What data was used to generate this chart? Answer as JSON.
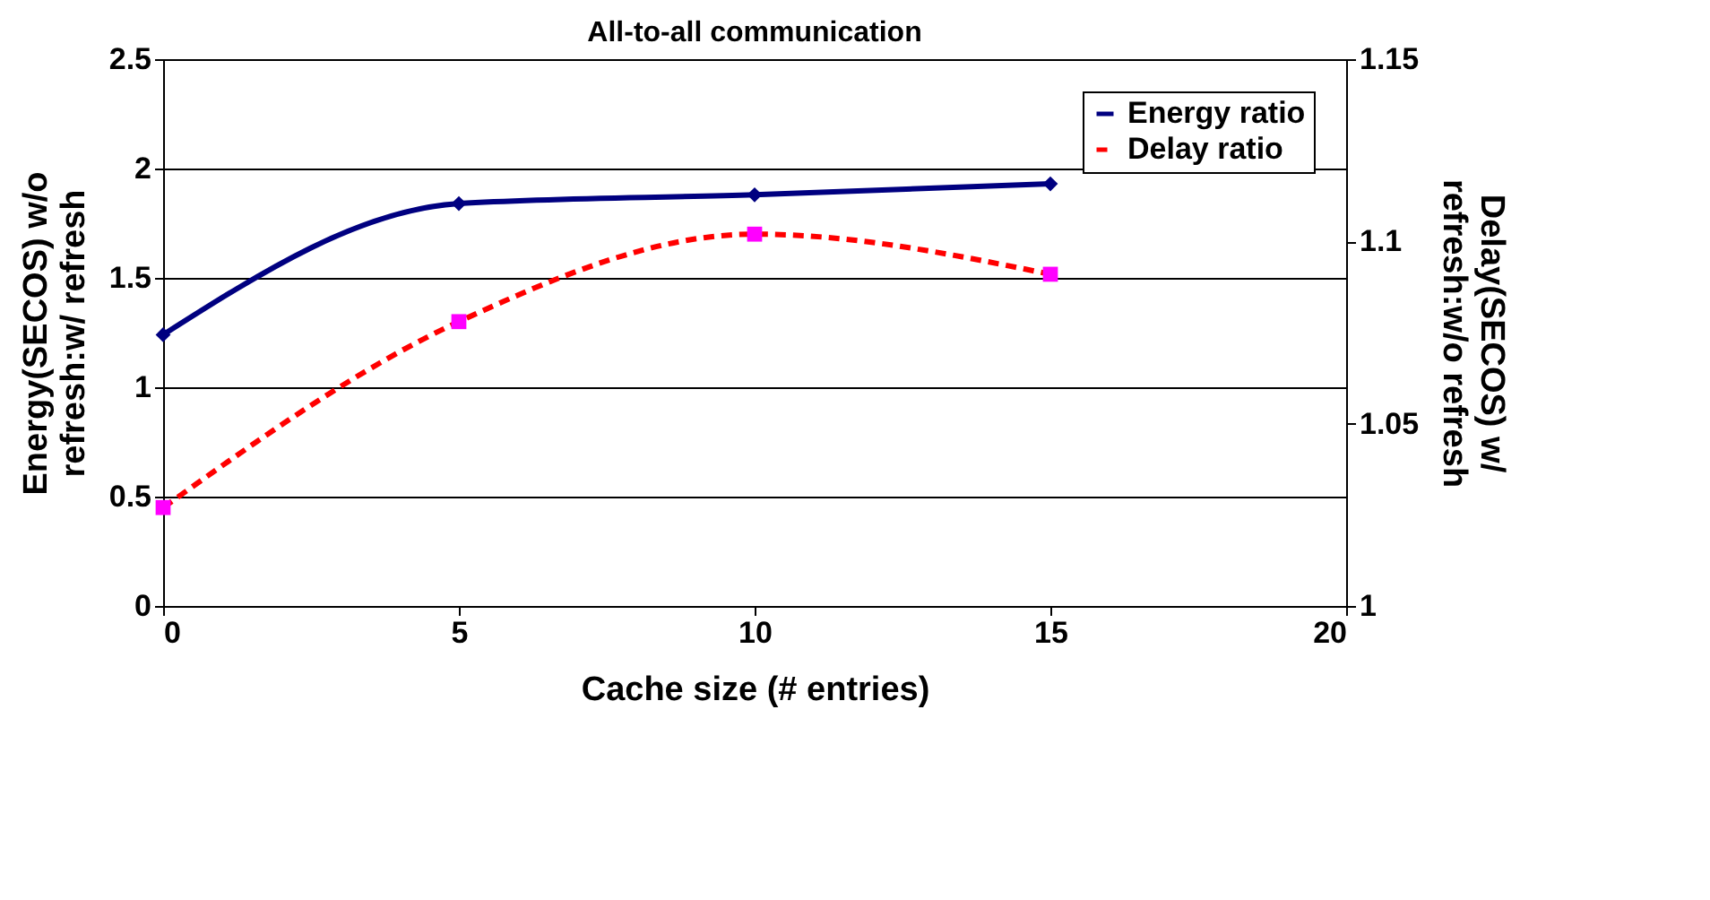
{
  "chart_data": {
    "type": "line",
    "title": "All-to-all communication",
    "xlabel": "Cache size (# entries)",
    "ylabel": "Energy(SECOS) w/o refresh:w/ refresh",
    "y2label": "Delay(SECOS) w/ refresh:w/o refresh",
    "x": [
      0,
      5,
      10,
      15
    ],
    "series": [
      {
        "name": "Energy ratio",
        "color": "#000080",
        "values": [
          1.24,
          1.84,
          1.88,
          1.93
        ],
        "marker": "diamond",
        "line_style": "solid"
      },
      {
        "name": "Delay ratio",
        "color": "#ff0000",
        "values": [
          1.027,
          1.078,
          1.102,
          1.091
        ],
        "marker": "square",
        "line_style": "dashed",
        "axis": "y2"
      }
    ],
    "xlim": [
      0,
      20
    ],
    "xticks": [
      0,
      5,
      10,
      15,
      20
    ],
    "ylim": [
      0,
      2.5
    ],
    "yticks": [
      0,
      0.5,
      1,
      1.5,
      2,
      2.5
    ],
    "y2lim": [
      1,
      1.15
    ],
    "y2ticks": [
      1,
      1.05,
      1.1,
      1.15
    ],
    "grid": "y",
    "legend": "top right"
  }
}
